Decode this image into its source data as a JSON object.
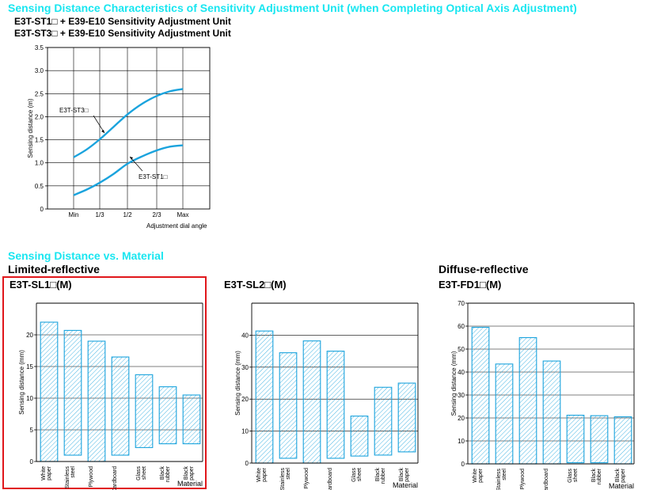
{
  "header": {
    "main_title": "Sensing Distance Characteristics of Sensitivity Adjustment Unit (when Completing Optical Axis Adjustment)",
    "subtitle_1": "E3T-ST1□ + E39-E10 Sensitivity Adjustment Unit",
    "subtitle_2": "E3T-ST3□ + E39-E10 Sensitivity Adjustment Unit"
  },
  "section2": {
    "title": "Sensing Distance vs. Material",
    "limited_label": "Limited-reflective",
    "diffuse_label": "Diffuse-reflective"
  },
  "chart_data": [
    {
      "type": "line",
      "title": "",
      "xlabel": "Adjustment dial angle",
      "ylabel": "Sensing distance (m)",
      "x_ticks": [
        "Min",
        "1/3",
        "1/2",
        "2/3",
        "Max"
      ],
      "y_ticks": [
        "0",
        "0.5",
        "1.0",
        "1.5",
        "2.0",
        "2.5",
        "3.0",
        "3.5"
      ],
      "ylim": [
        0,
        3.5
      ],
      "grid": true,
      "color": "#1aa3dd",
      "series": [
        {
          "name": "E3T-ST3□",
          "x": [
            0,
            0.5,
            1,
            1.5,
            2,
            2.5,
            3,
            3.5,
            4
          ],
          "values": [
            1.12,
            1.29,
            1.51,
            1.78,
            2.05,
            2.28,
            2.45,
            2.55,
            2.6
          ]
        },
        {
          "name": "E3T-ST1□",
          "x": [
            0,
            0.5,
            1,
            1.5,
            2,
            2.5,
            3,
            3.5,
            4
          ],
          "values": [
            0.3,
            0.42,
            0.57,
            0.76,
            0.98,
            1.14,
            1.27,
            1.35,
            1.38
          ]
        }
      ]
    },
    {
      "type": "bar",
      "title": "E3T-SL1□(M)",
      "xlabel": "Material",
      "ylabel": "Sensing distance (mm)",
      "categories": [
        "White paper",
        "Stainless steel",
        "Plywood",
        "Cardboard",
        "Glass sheet",
        "Black rubber",
        "Black paper"
      ],
      "bars": [
        [
          0,
          22
        ],
        [
          1,
          20.7
        ],
        [
          0,
          19
        ],
        [
          1,
          16.5
        ],
        [
          2.2,
          13.7
        ],
        [
          2.8,
          11.8
        ],
        [
          2.8,
          10.5
        ]
      ],
      "y_ticks": [
        "0",
        "5",
        "10",
        "15",
        "20"
      ],
      "ylim": [
        0,
        25
      ],
      "grid": true
    },
    {
      "type": "bar",
      "title": "E3T-SL2□(M)",
      "xlabel": "Material",
      "ylabel": "Sensing distance (mm)",
      "categories": [
        "White paper",
        "Stainless steel",
        "Plywood",
        "Cardboard",
        "Glass sheet",
        "Black rubber",
        "Black paper"
      ],
      "bars": [
        [
          0,
          41.3
        ],
        [
          1.5,
          34.5
        ],
        [
          0,
          38.2
        ],
        [
          1.5,
          35
        ],
        [
          2.2,
          14.7
        ],
        [
          2.5,
          23.7
        ],
        [
          3.5,
          25
        ]
      ],
      "y_ticks": [
        "0",
        "10",
        "20",
        "30",
        "40"
      ],
      "ylim": [
        0,
        50
      ],
      "grid": true
    },
    {
      "type": "bar",
      "title": "E3T-FD1□(M)",
      "xlabel": "Material",
      "ylabel": "Sensing distance (mm)",
      "categories": [
        "White paper",
        "Stainless steel",
        "Plywood",
        "Cardboard",
        "Glass sheet",
        "Black rubber",
        "Black paper"
      ],
      "bars": [
        [
          0,
          59.5
        ],
        [
          0,
          43.5
        ],
        [
          0,
          55
        ],
        [
          0,
          44.8
        ],
        [
          0.5,
          21.2
        ],
        [
          0.5,
          21
        ],
        [
          0,
          20.5
        ]
      ],
      "y_ticks": [
        "0",
        "10",
        "20",
        "30",
        "40",
        "50",
        "60",
        "70"
      ],
      "ylim": [
        0,
        70
      ],
      "grid": true
    }
  ]
}
